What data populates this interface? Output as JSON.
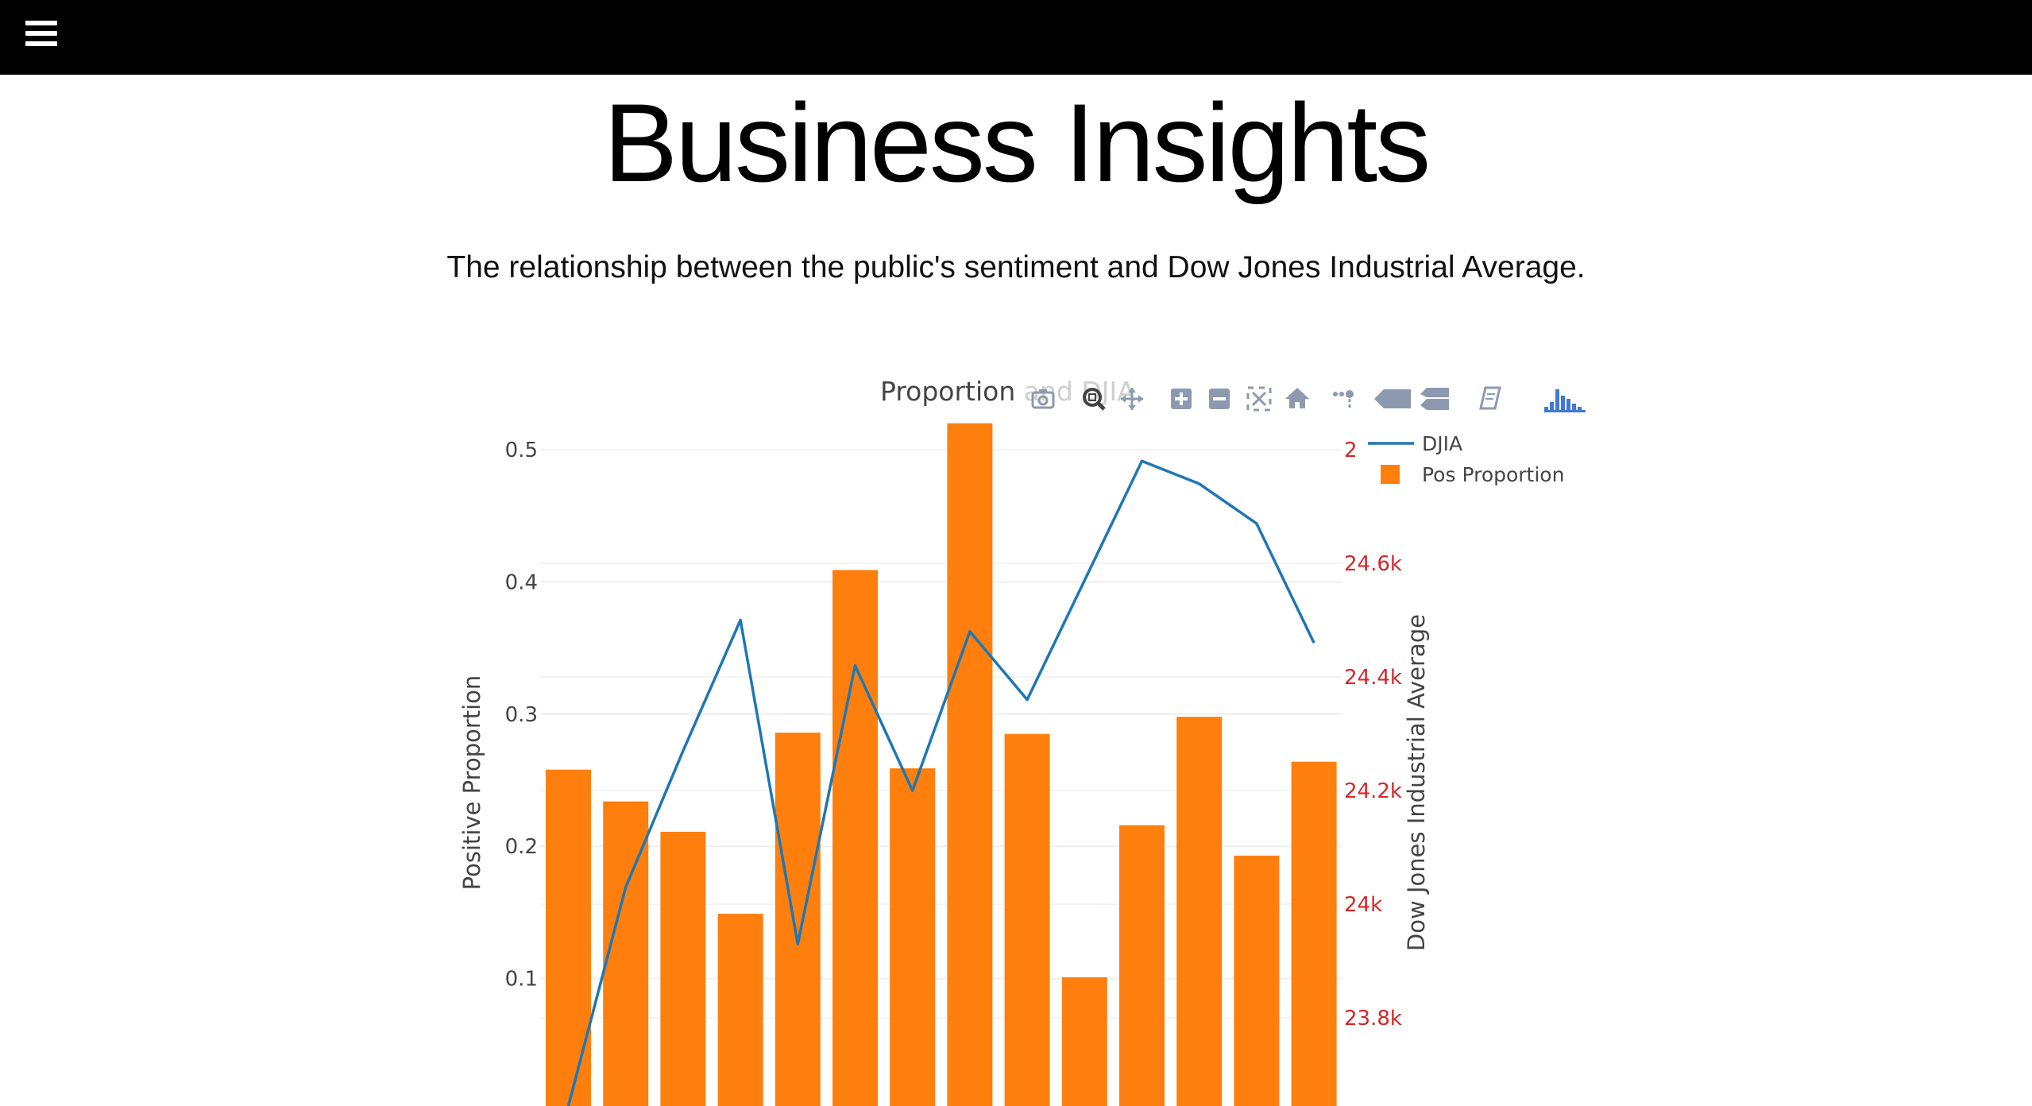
{
  "header": {
    "menu_icon": "hamburger-menu-icon"
  },
  "page": {
    "title": "Business Insights",
    "subtitle": "The relationship between the public's sentiment and Dow Jones Industrial Average."
  },
  "modebar": {
    "icons": [
      "camera-icon",
      "zoom-icon",
      "pan-icon",
      "zoom-in-icon",
      "zoom-out-icon",
      "autoscale-icon",
      "reset-axes-icon",
      "spike-lines-icon",
      "hover-closest-icon",
      "hover-compare-icon",
      "edit-chart-icon",
      "plotly-logo-icon"
    ]
  },
  "colors": {
    "bar": "#ff7f0e",
    "line": "#1f77b4",
    "y2_ticks": "#d62728",
    "axis_text": "#444444"
  },
  "chart_data": {
    "type": "bar",
    "title_visible": "Proportion",
    "title_partial": "and DJIA",
    "ylabel": "Positive Proportion",
    "y2label": "Dow Jones Industrial Average",
    "yticks": [
      "0.1",
      "0.2",
      "0.3",
      "0.4",
      "0.5"
    ],
    "y2ticks": [
      "23.8k",
      "24k",
      "24.2k",
      "24.4k",
      "24.6k",
      "2"
    ],
    "ylim": [
      0,
      0.53
    ],
    "y2lim": [
      23640,
      24850
    ],
    "grid": true,
    "legend_position": "top-right",
    "series": [
      {
        "name": "Pos Proportion",
        "type": "bar",
        "values": [
          0.258,
          0.234,
          0.211,
          0.149,
          0.286,
          0.409,
          0.259,
          0.52,
          0.285,
          0.101,
          0.216,
          0.298,
          0.193,
          0.264
        ]
      },
      {
        "name": "DJIA",
        "type": "line",
        "axis": "y2",
        "values": [
          23640,
          24030,
          24270,
          24500,
          23930,
          24420,
          24200,
          24480,
          24360,
          24570,
          24780,
          24740,
          24670,
          24460
        ]
      }
    ]
  }
}
